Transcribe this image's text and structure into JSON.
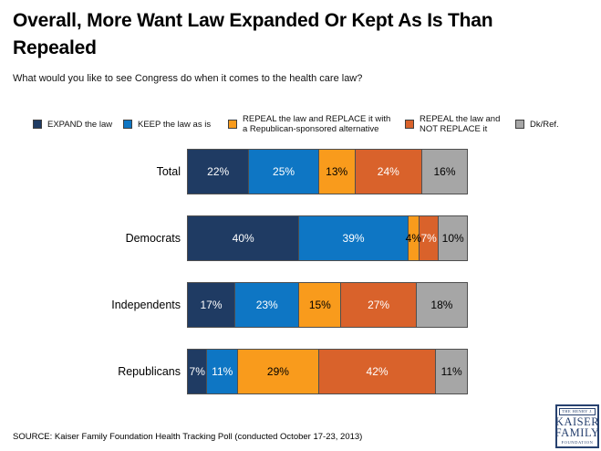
{
  "slide": {
    "title": "Overall, More Want Law Expanded Or Kept As Is Than Repealed",
    "subtitle": "What would you like to see Congress do when it comes to the health care law?",
    "source": "SOURCE: Kaiser Family Foundation Health Tracking Poll (conducted October 17-23, 2013)"
  },
  "logo": {
    "line1": "THE HENRY J.",
    "line2": "KAISER",
    "line3": "FAMILY",
    "line4": "FOUNDATION",
    "color": "#27416f"
  },
  "legend": {
    "items": [
      {
        "label": "EXPAND the law",
        "color": "#1f3b63"
      },
      {
        "label": "KEEP the law as is",
        "color": "#0e76c4"
      },
      {
        "label": "REPEAL the law and REPLACE it with\na Republican-sponsored alternative",
        "color": "#f99b1c"
      },
      {
        "label": "REPEAL the law and\nNOT REPLACE it",
        "color": "#d9622b"
      },
      {
        "label": "Dk/Ref.",
        "color": "#a6a6a6"
      }
    ]
  },
  "chart_data": {
    "type": "bar",
    "variant": "horizontal-stacked",
    "title": "Overall, More Want Law Expanded Or Kept As Is Than Repealed",
    "question": "What would you like to see Congress do when it comes to the health care law?",
    "categories": [
      "Total",
      "Democrats",
      "Independents",
      "Republicans"
    ],
    "series": [
      {
        "name": "EXPAND the law",
        "color": "#1f3b63",
        "text_color": "#ffffff",
        "values": [
          22,
          40,
          17,
          7
        ]
      },
      {
        "name": "KEEP the law as is",
        "color": "#0e76c4",
        "text_color": "#ffffff",
        "values": [
          25,
          39,
          23,
          11
        ]
      },
      {
        "name": "REPEAL the law and REPLACE it with a Republican-sponsored alternative",
        "color": "#f99b1c",
        "text_color": "#000000",
        "values": [
          13,
          4,
          15,
          29
        ]
      },
      {
        "name": "REPEAL the law and NOT REPLACE it",
        "color": "#d9622b",
        "text_color": "#ffffff",
        "values": [
          24,
          7,
          27,
          42
        ]
      },
      {
        "name": "Dk/Ref.",
        "color": "#a6a6a6",
        "text_color": "#000000",
        "values": [
          16,
          10,
          18,
          11
        ]
      }
    ],
    "value_suffix": "%",
    "xlim": [
      0,
      100
    ],
    "legend_position": "top",
    "bar_border_color": "#4f4f4f"
  }
}
